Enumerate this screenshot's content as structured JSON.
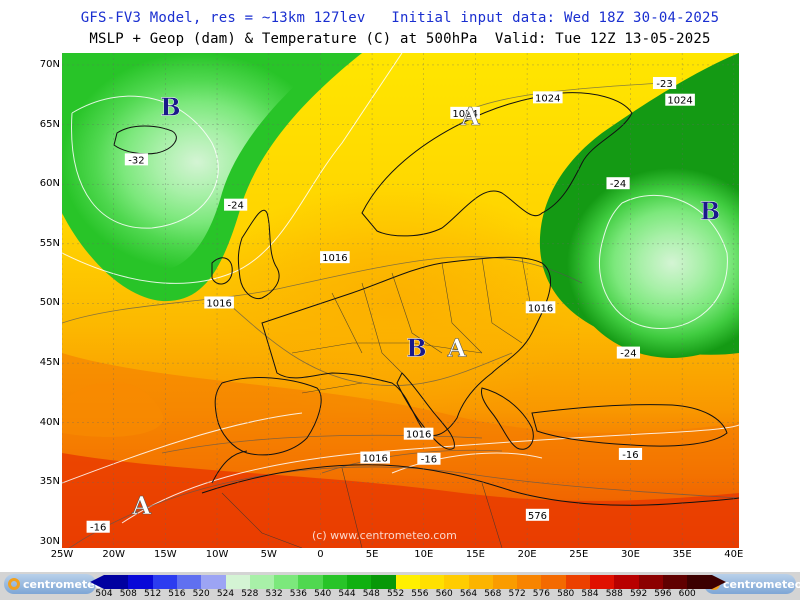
{
  "header": {
    "line1": "GFS-FV3 Model, res = ~13km 127lev   Initial input data: Wed 18Z 30-04-2025",
    "line2": "MSLP + Geop (dam) & Temperature (C) at 500hPa  Valid: Tue 12Z 13-05-2025"
  },
  "axes": {
    "lat_ticks": [
      "70N",
      "65N",
      "60N",
      "55N",
      "50N",
      "45N",
      "40N",
      "35N",
      "30N"
    ],
    "lon_ticks": [
      "25W",
      "20W",
      "15W",
      "10W",
      "5W",
      "0",
      "5E",
      "10E",
      "15E",
      "20E",
      "25E",
      "30E",
      "35E",
      "40E"
    ],
    "lat_range": [
      29.5,
      71
    ],
    "lon_range": [
      -25,
      40.5
    ]
  },
  "pressure_centers": [
    {
      "label": "B",
      "lon": -14.5,
      "lat": 66.5,
      "color": "#1a1a8a"
    },
    {
      "label": "B",
      "lon": 37.7,
      "lat": 57.8,
      "color": "#1a1a8a"
    },
    {
      "label": "B",
      "lon": 9.3,
      "lat": 46.3,
      "color": "#1a1a8a"
    },
    {
      "label": "A",
      "lon": 13.2,
      "lat": 46.3,
      "color": "#ffffff"
    },
    {
      "label": "A",
      "lon": 14.5,
      "lat": 65.7,
      "color": "#ffffff"
    },
    {
      "label": "A",
      "lon": -17.3,
      "lat": 33.1,
      "color": "#ffffff"
    }
  ],
  "isobar_labels": [
    {
      "text": "1024",
      "lon": 22.0,
      "lat": 67.2
    },
    {
      "text": "1024",
      "lon": 34.8,
      "lat": 67.0
    },
    {
      "text": "1024",
      "lon": 14.0,
      "lat": 65.9
    },
    {
      "text": "1016",
      "lon": 1.4,
      "lat": 53.8
    },
    {
      "text": "1016",
      "lon": -9.8,
      "lat": 50.0
    },
    {
      "text": "1016",
      "lon": 21.3,
      "lat": 49.6
    },
    {
      "text": "1016",
      "lon": 9.5,
      "lat": 39.0
    },
    {
      "text": "1016",
      "lon": 5.3,
      "lat": 37.0
    }
  ],
  "temperature_labels": [
    {
      "text": "-32",
      "lon": -17.8,
      "lat": 62.0
    },
    {
      "text": "-24",
      "lon": -8.2,
      "lat": 58.2
    },
    {
      "text": "-24",
      "lon": 28.8,
      "lat": 60.0
    },
    {
      "text": "-24",
      "lon": 29.8,
      "lat": 45.8
    },
    {
      "text": "-16",
      "lon": 10.5,
      "lat": 36.9
    },
    {
      "text": "-16",
      "lon": 30.0,
      "lat": 37.3
    },
    {
      "text": "-16",
      "lon": -21.5,
      "lat": 31.2
    },
    {
      "text": "-23",
      "lon": 33.3,
      "lat": 68.4
    }
  ],
  "geop_labels": [
    {
      "text": "576",
      "lon": 21.0,
      "lat": 32.2
    }
  ],
  "watermark": "(c) www.centrometeo.com",
  "logo_text": "centrometeo",
  "colorbar": {
    "ticks": [
      "504",
      "508",
      "512",
      "516",
      "520",
      "524",
      "528",
      "532",
      "536",
      "540",
      "544",
      "548",
      "552",
      "556",
      "560",
      "564",
      "568",
      "572",
      "576",
      "580",
      "584",
      "588",
      "592",
      "596",
      "600"
    ],
    "colors": [
      "#0000a0",
      "#0808d8",
      "#2c3cf0",
      "#6070f0",
      "#9ca4f4",
      "#d4f4d4",
      "#a8f0a8",
      "#7ce87c",
      "#50d850",
      "#28c428",
      "#10b010",
      "#089808",
      "#fff000",
      "#ffe000",
      "#ffcc00",
      "#fcb400",
      "#fa9c00",
      "#f88400",
      "#f46a00",
      "#ec4000",
      "#e01000",
      "#b80000",
      "#8c0000",
      "#600000",
      "#3c0000"
    ]
  }
}
